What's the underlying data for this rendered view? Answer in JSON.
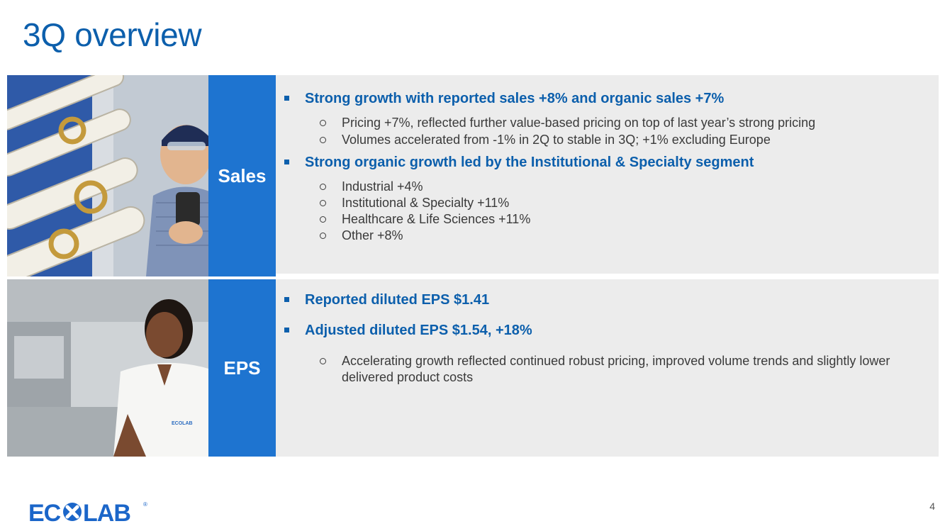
{
  "title": "3Q overview",
  "sales": {
    "label": "Sales",
    "bullets": [
      {
        "text": "Strong growth with reported sales +8% and organic sales +7%",
        "subs": [
          "Pricing +7%, reflected further value-based pricing on top of last year’s strong pricing",
          "Volumes accelerated from -1% in 2Q to stable in 3Q; +1% excluding Europe"
        ]
      },
      {
        "text": "Strong organic growth led by the Institutional & Specialty segment",
        "subs": [
          "Industrial +4%",
          "Institutional & Specialty +11%",
          "Healthcare & Life Sciences +11%",
          "Other +8%"
        ]
      }
    ]
  },
  "eps": {
    "label": "EPS",
    "bullets": [
      {
        "text": "Reported diluted EPS $1.41",
        "subs": []
      },
      {
        "text": "Adjusted diluted EPS $1.54, +18%",
        "subs": [
          "Accelerating growth reflected continued robust pricing, improved volume trends and slightly lower delivered product costs"
        ]
      }
    ]
  },
  "footer": {
    "logo_text": "ECOLAB",
    "page_number": "4"
  },
  "colors": {
    "title_blue": "#0c5fac",
    "band_blue": "#1e74d0",
    "panel_gray": "#ececec"
  }
}
